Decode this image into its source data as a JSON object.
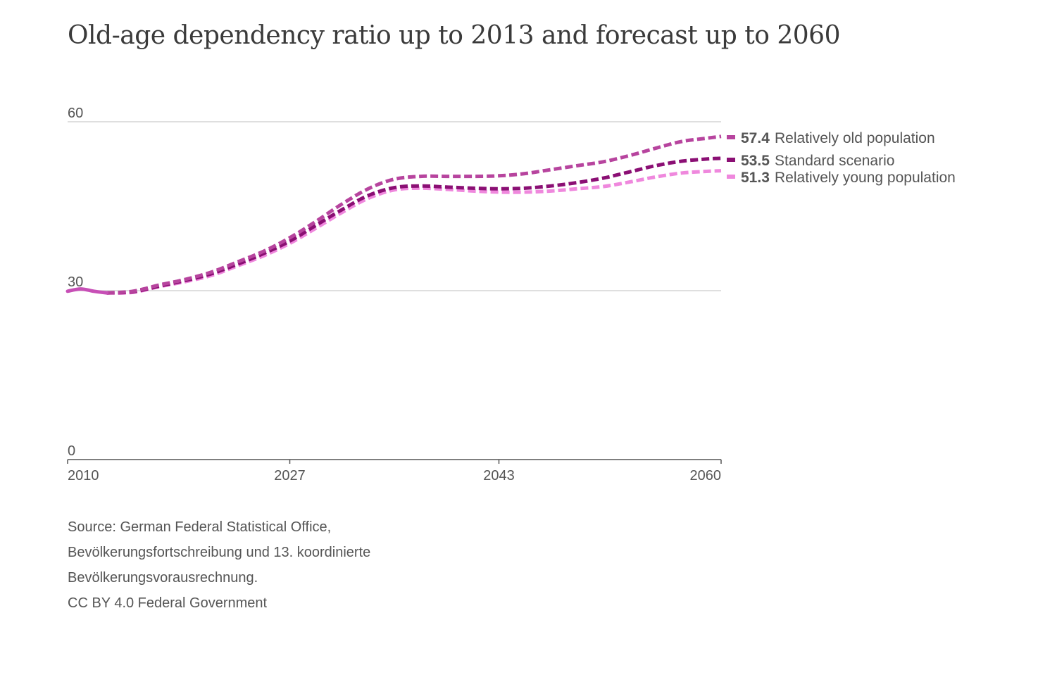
{
  "chart_data": {
    "type": "line",
    "title": "Old-age dependency ratio up to 2013 and forecast up to 2060",
    "xlabel": "",
    "ylabel": "",
    "xlim": [
      2010,
      2060
    ],
    "ylim": [
      0,
      60
    ],
    "x_ticks": [
      2010,
      2027,
      2043,
      2060
    ],
    "y_ticks": [
      0,
      30,
      60
    ],
    "grid": "horizontal",
    "legend_placement": "right-end-labels",
    "historical": {
      "x": [
        2010,
        2011,
        2012,
        2013
      ],
      "y": [
        29.9,
        30.3,
        29.9,
        29.6
      ],
      "color": "#c74fb6"
    },
    "series": [
      {
        "name": "Relatively old population",
        "end_label": "57.4",
        "color": "#b7449e",
        "x": [
          2013,
          2015,
          2017,
          2019,
          2021,
          2023,
          2025,
          2027,
          2029,
          2031,
          2033,
          2035,
          2037,
          2039,
          2041,
          2043,
          2045,
          2047,
          2049,
          2051,
          2053,
          2055,
          2057,
          2059,
          2060
        ],
        "y": [
          29.6,
          29.9,
          31.0,
          32.0,
          33.3,
          35.1,
          37.0,
          39.4,
          42.3,
          45.4,
          48.1,
          49.8,
          50.3,
          50.3,
          50.3,
          50.4,
          50.8,
          51.5,
          52.2,
          52.9,
          54.0,
          55.3,
          56.5,
          57.1,
          57.4
        ]
      },
      {
        "name": "Standard scenario",
        "end_label": "53.5",
        "color": "#8b0f74",
        "x": [
          2013,
          2015,
          2017,
          2019,
          2021,
          2023,
          2025,
          2027,
          2029,
          2031,
          2033,
          2035,
          2037,
          2039,
          2041,
          2043,
          2045,
          2047,
          2049,
          2051,
          2053,
          2055,
          2057,
          2059,
          2060
        ],
        "y": [
          29.6,
          29.8,
          30.8,
          31.8,
          33.0,
          34.7,
          36.6,
          38.8,
          41.6,
          44.4,
          46.9,
          48.3,
          48.6,
          48.4,
          48.2,
          48.1,
          48.2,
          48.6,
          49.2,
          50.0,
          51.1,
          52.2,
          53.0,
          53.4,
          53.5
        ]
      },
      {
        "name": "Relatively young population",
        "end_label": "51.3",
        "color": "#ef88dd",
        "x": [
          2013,
          2015,
          2017,
          2019,
          2021,
          2023,
          2025,
          2027,
          2029,
          2031,
          2033,
          2035,
          2037,
          2039,
          2041,
          2043,
          2045,
          2047,
          2049,
          2051,
          2053,
          2055,
          2057,
          2059,
          2060
        ],
        "y": [
          29.6,
          29.7,
          30.7,
          31.6,
          32.7,
          34.4,
          36.2,
          38.4,
          41.1,
          43.9,
          46.4,
          47.9,
          48.2,
          48.0,
          47.7,
          47.5,
          47.5,
          47.7,
          48.1,
          48.5,
          49.3,
          50.2,
          50.9,
          51.2,
          51.3
        ]
      }
    ]
  },
  "source": {
    "lines": [
      "Source: German Federal Statistical Office,",
      "Bevölkerungsfortschreibung und 13. koordinierte",
      "Bevölkerungsvorausrechnung.",
      "CC BY 4.0 Federal Government"
    ]
  }
}
